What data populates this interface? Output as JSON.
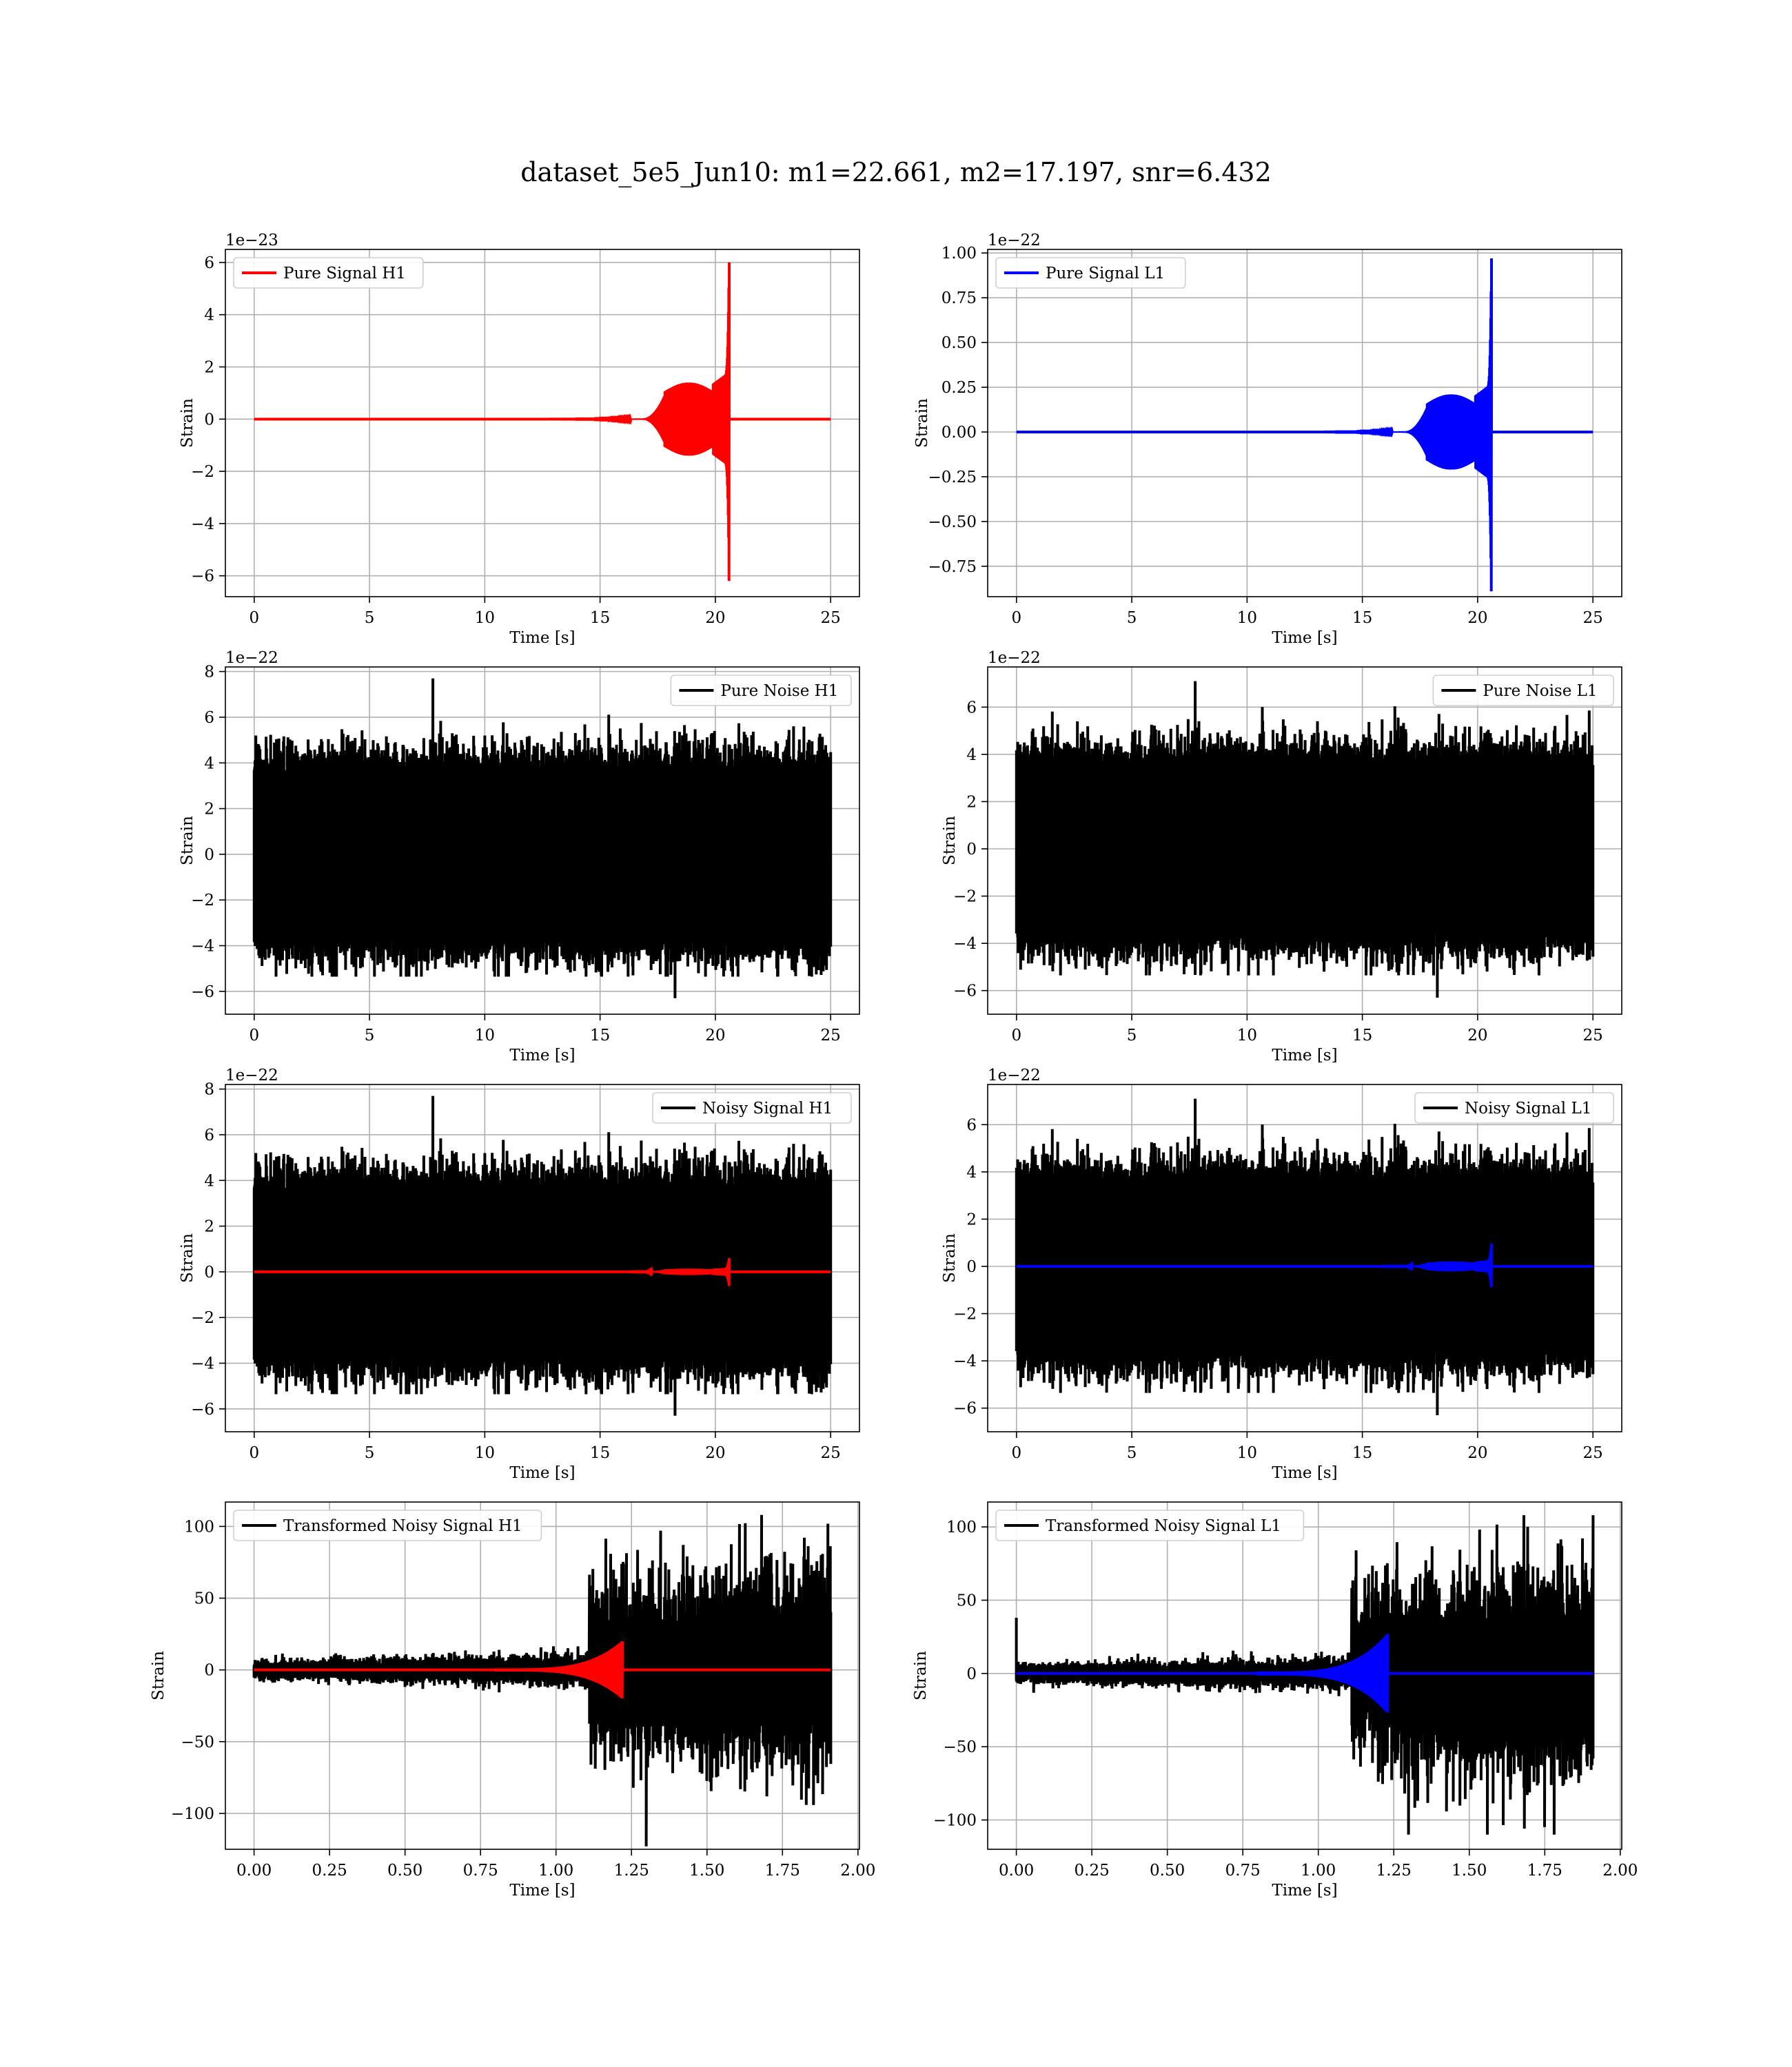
{
  "figure": {
    "title": "dataset_5e5_Jun10: m1=22.661, m2=17.197, snr=6.432"
  },
  "colors": {
    "h1_signal": "#ff0000",
    "l1_signal": "#0000ff",
    "noise": "#000000",
    "grid": "#b0b0b0"
  },
  "chart_data": [
    {
      "type": "line",
      "id": "pure-signal-h1",
      "xlabel": "Time [s]",
      "ylabel": "Strain",
      "offset": "1e−23",
      "xlim": [
        -1.25,
        26.25
      ],
      "ylim": [
        -6.8,
        6.5
      ],
      "xticks": [
        0,
        5,
        10,
        15,
        20,
        25
      ],
      "xtick_labels": [
        "0",
        "5",
        "10",
        "15",
        "20",
        "25"
      ],
      "yticks": [
        -6,
        -4,
        -2,
        0,
        2,
        4,
        6
      ],
      "ytick_labels": [
        "−6",
        "−4",
        "−2",
        "0",
        "2",
        "4",
        "6"
      ],
      "grid": true,
      "legend_position": "top-left",
      "series": [
        {
          "name": "Pure Signal H1",
          "color": "#ff0000",
          "kind": "chirp",
          "x_start": 0,
          "x_end": 25,
          "onset": 13.0,
          "merger": 20.6,
          "bulge_start": 17.8,
          "bulge_end": 19.9,
          "bulge_amp": 1.4,
          "plateau_amp": 1.8,
          "peak_high": 6.0,
          "peak_low": -6.2
        }
      ]
    },
    {
      "type": "line",
      "id": "pure-signal-l1",
      "xlabel": "Time [s]",
      "ylabel": "Strain",
      "offset": "1e−22",
      "xlim": [
        -1.25,
        26.25
      ],
      "ylim": [
        -0.92,
        1.02
      ],
      "xticks": [
        0,
        5,
        10,
        15,
        20,
        25
      ],
      "xtick_labels": [
        "0",
        "5",
        "10",
        "15",
        "20",
        "25"
      ],
      "yticks": [
        -0.75,
        -0.5,
        -0.25,
        0,
        0.25,
        0.5,
        0.75,
        1.0
      ],
      "ytick_labels": [
        "−0.75",
        "−0.50",
        "−0.25",
        "0.00",
        "0.25",
        "0.50",
        "0.75",
        "1.00"
      ],
      "grid": true,
      "legend_position": "top-left",
      "series": [
        {
          "name": "Pure Signal L1",
          "color": "#0000ff",
          "kind": "chirp",
          "x_start": 0,
          "x_end": 25,
          "onset": 13.0,
          "merger": 20.6,
          "bulge_start": 17.8,
          "bulge_end": 19.9,
          "bulge_amp": 0.21,
          "plateau_amp": 0.27,
          "peak_high": 0.97,
          "peak_low": -0.89
        }
      ]
    },
    {
      "type": "line",
      "id": "pure-noise-h1",
      "xlabel": "Time [s]",
      "ylabel": "Strain",
      "offset": "1e−22",
      "xlim": [
        -1.25,
        26.25
      ],
      "ylim": [
        -7.0,
        8.2
      ],
      "xticks": [
        0,
        5,
        10,
        15,
        20,
        25
      ],
      "xtick_labels": [
        "0",
        "5",
        "10",
        "15",
        "20",
        "25"
      ],
      "yticks": [
        -6,
        -4,
        -2,
        0,
        2,
        4,
        6,
        8
      ],
      "ytick_labels": [
        "−6",
        "−4",
        "−2",
        "0",
        "2",
        "4",
        "6",
        "8"
      ],
      "grid": true,
      "legend_position": "top-right",
      "series": [
        {
          "name": "Pure Noise H1",
          "color": "#000000",
          "kind": "noise",
          "x_start": 0,
          "x_end": 25,
          "core": 3.5,
          "peak_max": 7.7,
          "peak_min": -6.3,
          "seed": 11
        }
      ]
    },
    {
      "type": "line",
      "id": "pure-noise-l1",
      "xlabel": "Time [s]",
      "ylabel": "Strain",
      "offset": "1e−22",
      "xlim": [
        -1.25,
        26.25
      ],
      "ylim": [
        -7.0,
        7.7
      ],
      "xticks": [
        0,
        5,
        10,
        15,
        20,
        25
      ],
      "xtick_labels": [
        "0",
        "5",
        "10",
        "15",
        "20",
        "25"
      ],
      "yticks": [
        -6,
        -4,
        -2,
        0,
        2,
        4,
        6
      ],
      "ytick_labels": [
        "−6",
        "−4",
        "−2",
        "0",
        "2",
        "4",
        "6"
      ],
      "grid": true,
      "legend_position": "top-right",
      "series": [
        {
          "name": "Pure Noise L1",
          "color": "#000000",
          "kind": "noise",
          "x_start": 0,
          "x_end": 25,
          "core": 3.4,
          "peak_max": 7.1,
          "peak_min": -6.3,
          "seed": 23
        }
      ]
    },
    {
      "type": "line",
      "id": "noisy-signal-h1",
      "xlabel": "Time [s]",
      "ylabel": "Strain",
      "offset": "1e−22",
      "xlim": [
        -1.25,
        26.25
      ],
      "ylim": [
        -7.0,
        8.2
      ],
      "xticks": [
        0,
        5,
        10,
        15,
        20,
        25
      ],
      "xtick_labels": [
        "0",
        "5",
        "10",
        "15",
        "20",
        "25"
      ],
      "yticks": [
        -6,
        -4,
        -2,
        0,
        2,
        4,
        6,
        8
      ],
      "ytick_labels": [
        "−6",
        "−4",
        "−2",
        "0",
        "2",
        "4",
        "6",
        "8"
      ],
      "grid": true,
      "legend_position": "top-right",
      "series": [
        {
          "name": "Noisy Signal H1",
          "color": "#000000",
          "kind": "noise",
          "x_start": 0,
          "x_end": 25,
          "core": 3.5,
          "peak_max": 7.7,
          "peak_min": -6.3,
          "seed": 11
        },
        {
          "color": "#ff0000",
          "kind": "chirp",
          "x_start": 0,
          "x_end": 25,
          "onset": 13.0,
          "merger": 20.6,
          "bulge_start": 17.8,
          "bulge_end": 19.9,
          "bulge_amp": 0.14,
          "plateau_amp": 0.18,
          "peak_high": 0.6,
          "peak_low": -0.62
        }
      ]
    },
    {
      "type": "line",
      "id": "noisy-signal-l1",
      "xlabel": "Time [s]",
      "ylabel": "Strain",
      "offset": "1e−22",
      "xlim": [
        -1.25,
        26.25
      ],
      "ylim": [
        -7.0,
        7.7
      ],
      "xticks": [
        0,
        5,
        10,
        15,
        20,
        25
      ],
      "xtick_labels": [
        "0",
        "5",
        "10",
        "15",
        "20",
        "25"
      ],
      "yticks": [
        -6,
        -4,
        -2,
        0,
        2,
        4,
        6
      ],
      "ytick_labels": [
        "−6",
        "−4",
        "−2",
        "0",
        "2",
        "4",
        "6"
      ],
      "grid": true,
      "legend_position": "top-right",
      "series": [
        {
          "name": "Noisy Signal L1",
          "color": "#000000",
          "kind": "noise",
          "x_start": 0,
          "x_end": 25,
          "core": 3.4,
          "peak_max": 7.1,
          "peak_min": -6.3,
          "seed": 23
        },
        {
          "color": "#0000ff",
          "kind": "chirp",
          "x_start": 0,
          "x_end": 25,
          "onset": 13.0,
          "merger": 20.6,
          "bulge_start": 17.8,
          "bulge_end": 19.9,
          "bulge_amp": 0.21,
          "plateau_amp": 0.27,
          "peak_high": 0.97,
          "peak_low": -0.89
        }
      ]
    },
    {
      "type": "line",
      "id": "transformed-noisy-signal-h1",
      "xlabel": "Time [s]",
      "ylabel": "Strain",
      "offset": "",
      "xlim": [
        -0.095,
        2.005
      ],
      "ylim": [
        -125,
        117
      ],
      "xticks": [
        0,
        0.25,
        0.5,
        0.75,
        1.0,
        1.25,
        1.5,
        1.75,
        2.0
      ],
      "xtick_labels": [
        "0.00",
        "0.25",
        "0.50",
        "0.75",
        "1.00",
        "1.25",
        "1.50",
        "1.75",
        "2.00"
      ],
      "yticks": [
        -100,
        -50,
        0,
        50,
        100
      ],
      "ytick_labels": [
        "−100",
        "−50",
        "0",
        "50",
        "100"
      ],
      "grid": true,
      "legend_position": "top-left",
      "series": [
        {
          "name": "Transformed Noisy Signal H1",
          "color": "#000000",
          "kind": "whitened",
          "x_start": 0,
          "x_end": 1.91,
          "step_at": 1.11,
          "quiet_core": 5,
          "loud_core": 40,
          "peak_max": 108,
          "peak_min": -123,
          "seed": 5
        },
        {
          "color": "#ff0000",
          "kind": "chirp_fast",
          "x_start": 0,
          "x_end": 1.91,
          "onset": 0.8,
          "merger": 1.22,
          "peak": 20
        }
      ]
    },
    {
      "type": "line",
      "id": "transformed-noisy-signal-l1",
      "xlabel": "Time [s]",
      "ylabel": "Strain",
      "offset": "",
      "xlim": [
        -0.095,
        2.005
      ],
      "ylim": [
        -120,
        117
      ],
      "xticks": [
        0,
        0.25,
        0.5,
        0.75,
        1.0,
        1.25,
        1.5,
        1.75,
        2.0
      ],
      "xtick_labels": [
        "0.00",
        "0.25",
        "0.50",
        "0.75",
        "1.00",
        "1.25",
        "1.50",
        "1.75",
        "2.00"
      ],
      "yticks": [
        -100,
        -50,
        0,
        50,
        100
      ],
      "ytick_labels": [
        "−100",
        "−50",
        "0",
        "50",
        "100"
      ],
      "grid": true,
      "legend_position": "top-left",
      "series": [
        {
          "name": "Transformed Noisy Signal L1",
          "color": "#000000",
          "kind": "whitened",
          "x_start": 0,
          "x_end": 1.91,
          "step_at": 1.11,
          "quiet_core": 5,
          "loud_core": 40,
          "peak_max": 108,
          "peak_min": -110,
          "seed": 9,
          "spike_at_start": 38
        },
        {
          "color": "#0000ff",
          "kind": "chirp_fast",
          "x_start": 0,
          "x_end": 1.91,
          "onset": 0.8,
          "merger": 1.23,
          "peak": 27
        }
      ]
    }
  ]
}
